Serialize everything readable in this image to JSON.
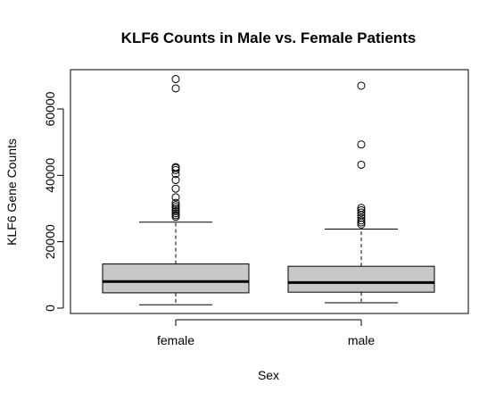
{
  "chart_data": {
    "type": "boxplot",
    "title": "KLF6 Counts in Male vs. Female Patients",
    "xlabel": "Sex",
    "ylabel": "KLF6 Gene Counts",
    "categories": [
      "female",
      "male"
    ],
    "yticks": [
      0,
      20000,
      40000,
      60000
    ],
    "ylim": [
      0,
      70000
    ],
    "grid": false,
    "box_fill": "#c8c8c8",
    "line_color": "#000000",
    "boxes": [
      {
        "category": "female",
        "min": 1000,
        "q1": 4600,
        "median": 8000,
        "q3": 13300,
        "max": 25900,
        "outliers": [
          27500,
          28000,
          28600,
          29200,
          29800,
          30400,
          31000,
          31700,
          33400,
          36000,
          38600,
          40400,
          41600,
          42200,
          42500,
          66200,
          69000
        ]
      },
      {
        "category": "male",
        "min": 1600,
        "q1": 4800,
        "median": 7700,
        "q3": 12600,
        "max": 23800,
        "outliers": [
          25200,
          25800,
          26400,
          27200,
          28000,
          28800,
          29500,
          30200,
          43200,
          49300,
          67000
        ]
      }
    ]
  }
}
